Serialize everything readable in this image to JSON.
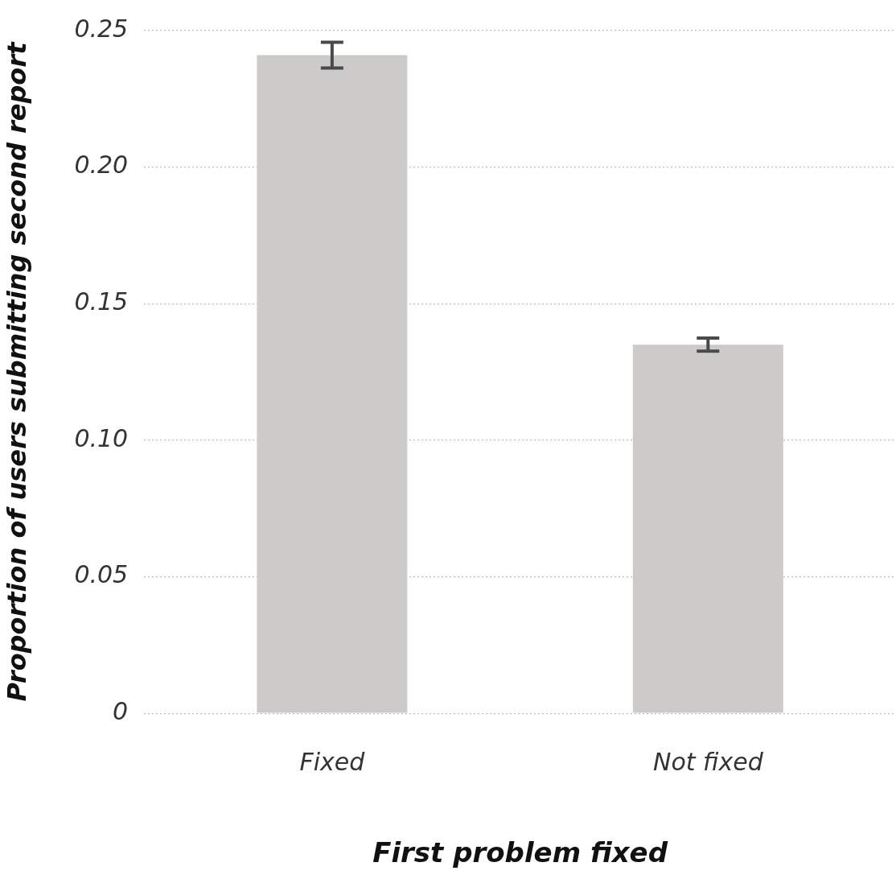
{
  "chart_data": {
    "type": "bar",
    "xlabel": "First problem fixed",
    "ylabel": "Proportion of users submitting second report",
    "categories": [
      "Fixed",
      "Not fixed"
    ],
    "values": [
      0.241,
      0.135
    ],
    "errors": [
      0.0047,
      0.0024
    ],
    "color": "#cccbca",
    "ylim": [
      0,
      0.25
    ],
    "yticks": [
      {
        "value": 0,
        "label": "0"
      },
      {
        "value": 0.05,
        "label": "0.05"
      },
      {
        "value": 0.1,
        "label": "0.10"
      },
      {
        "value": 0.15,
        "label": "0.15"
      },
      {
        "value": 0.2,
        "label": "0.20"
      },
      {
        "value": 0.25,
        "label": "0.25"
      }
    ],
    "grid": "y",
    "legend": false
  }
}
